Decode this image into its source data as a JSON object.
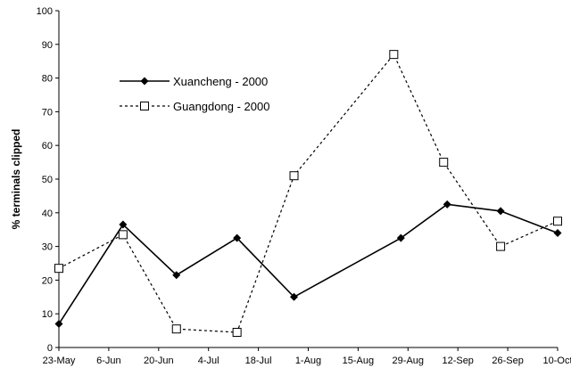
{
  "chart_data": {
    "type": "line",
    "title": "",
    "xlabel": "",
    "ylabel": "% terminals clipped",
    "x_ticks": [
      "23-May",
      "6-Jun",
      "20-Jun",
      "4-Jul",
      "18-Jul",
      "1-Aug",
      "15-Aug",
      "29-Aug",
      "12-Sep",
      "26-Sep",
      "10-Oct"
    ],
    "y_ticks": [
      "0",
      "10",
      "20",
      "30",
      "40",
      "50",
      "60",
      "70",
      "80",
      "90",
      "100"
    ],
    "xlim": [
      "23-May",
      "10-Oct"
    ],
    "ylim": [
      0,
      100
    ],
    "grid": false,
    "legend_position": "top-left",
    "series": [
      {
        "name": "Xuancheng - 2000",
        "style": "solid",
        "marker": "diamond",
        "color": "#000000",
        "points": [
          {
            "x": "23-May",
            "y": 7
          },
          {
            "x": "10-Jun",
            "y": 36.5
          },
          {
            "x": "25-Jun",
            "y": 21.5
          },
          {
            "x": "12-Jul",
            "y": 32.5
          },
          {
            "x": "28-Jul",
            "y": 15
          },
          {
            "x": "27-Aug",
            "y": 32.5
          },
          {
            "x": "9-Sep",
            "y": 42.5
          },
          {
            "x": "24-Sep",
            "y": 40.5
          },
          {
            "x": "10-Oct",
            "y": 34
          }
        ]
      },
      {
        "name": "Guangdong - 2000",
        "style": "dotted",
        "marker": "square-open",
        "color": "#000000",
        "points": [
          {
            "x": "23-May",
            "y": 23.5
          },
          {
            "x": "10-Jun",
            "y": 33.5
          },
          {
            "x": "25-Jun",
            "y": 5.5
          },
          {
            "x": "12-Jul",
            "y": 4.5
          },
          {
            "x": "28-Jul",
            "y": 51
          },
          {
            "x": "25-Aug",
            "y": 87
          },
          {
            "x": "8-Sep",
            "y": 55
          },
          {
            "x": "24-Sep",
            "y": 30
          },
          {
            "x": "10-Oct",
            "y": 37.5
          }
        ]
      }
    ]
  }
}
